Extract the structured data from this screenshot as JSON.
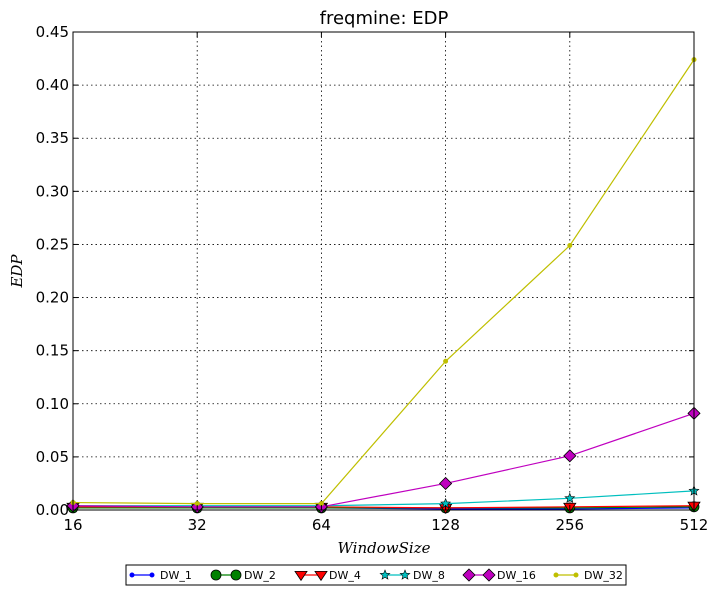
{
  "chart_data": {
    "type": "line",
    "title": "freqmine: EDP",
    "xlabel": "WindowSize",
    "ylabel": "EDP",
    "x": [
      16,
      32,
      64,
      128,
      256,
      512
    ],
    "x_scale": "log2",
    "xlim": [
      16,
      512
    ],
    "ylim": [
      0,
      0.45
    ],
    "yticks": [
      "0.00",
      "0.05",
      "0.10",
      "0.15",
      "0.20",
      "0.25",
      "0.30",
      "0.35",
      "0.40",
      "0.45"
    ],
    "xticks": [
      "16",
      "32",
      "64",
      "128",
      "256",
      "512"
    ],
    "grid": true,
    "legend_position": "bottom-center",
    "series": [
      {
        "name": "DW_1",
        "color": "#0000ff",
        "marker": "point",
        "values": [
          0.002,
          0.002,
          0.002,
          0.001,
          0.001,
          0.002
        ]
      },
      {
        "name": "DW_2",
        "color": "#008000",
        "marker": "circle",
        "values": [
          0.002,
          0.002,
          0.002,
          0.002,
          0.002,
          0.003
        ]
      },
      {
        "name": "DW_4",
        "color": "#ff0000",
        "marker": "triangle",
        "values": [
          0.003,
          0.003,
          0.003,
          0.002,
          0.003,
          0.004
        ]
      },
      {
        "name": "DW_8",
        "color": "#00bfbf",
        "marker": "star",
        "values": [
          0.004,
          0.004,
          0.004,
          0.006,
          0.011,
          0.018
        ]
      },
      {
        "name": "DW_16",
        "color": "#bf00bf",
        "marker": "diamond",
        "values": [
          0.004,
          0.003,
          0.003,
          0.025,
          0.051,
          0.091
        ]
      },
      {
        "name": "DW_32",
        "color": "#bfbf00",
        "marker": "point",
        "values": [
          0.007,
          0.006,
          0.006,
          0.14,
          0.249,
          0.424
        ]
      }
    ]
  }
}
